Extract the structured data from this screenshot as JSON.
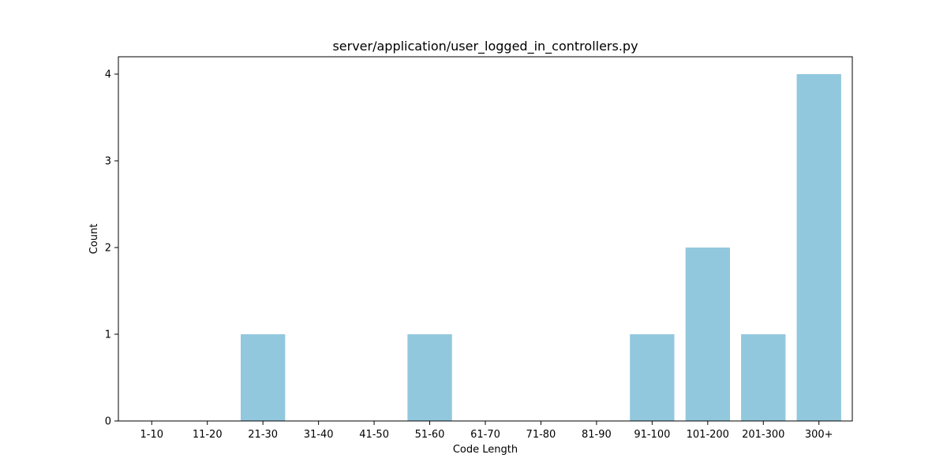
{
  "chart_data": {
    "type": "bar",
    "title": "server/application/user_logged_in_controllers.py",
    "xlabel": "Code Length",
    "ylabel": "Count",
    "categories": [
      "1-10",
      "11-20",
      "21-30",
      "31-40",
      "41-50",
      "51-60",
      "61-70",
      "71-80",
      "81-90",
      "91-100",
      "101-200",
      "201-300",
      "300+"
    ],
    "values": [
      0,
      0,
      1,
      0,
      0,
      1,
      0,
      0,
      0,
      1,
      2,
      1,
      4
    ],
    "ylim": [
      0,
      4.2
    ],
    "yticks": [
      "0",
      "1",
      "2",
      "3",
      "4"
    ],
    "grid": false,
    "bar_color": "#92c8de"
  }
}
